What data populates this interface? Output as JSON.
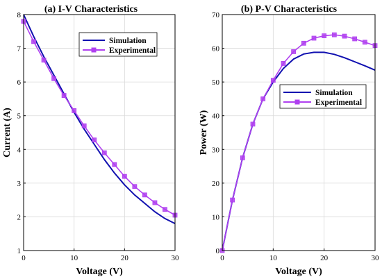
{
  "chart_data": [
    {
      "type": "line",
      "title": "(a) I-V Characteristics",
      "xlabel": "Voltage (V)",
      "ylabel": "Current (A)",
      "xlim": [
        0,
        30
      ],
      "ylim": [
        1,
        8
      ],
      "xticks": [
        0,
        10,
        20,
        30
      ],
      "yticks": [
        1,
        2,
        3,
        4,
        5,
        6,
        7,
        8
      ],
      "grid": true,
      "legend_position": "top-right",
      "series": [
        {
          "name": "Simulation",
          "color": "#1010b0",
          "marker": "none",
          "x": [
            0,
            2,
            4,
            6,
            8,
            10,
            12,
            14,
            16,
            18,
            20,
            22,
            24,
            26,
            28,
            30
          ],
          "y": [
            8.0,
            7.35,
            6.75,
            6.2,
            5.65,
            5.1,
            4.6,
            4.15,
            3.7,
            3.3,
            2.95,
            2.65,
            2.4,
            2.15,
            1.95,
            1.8
          ]
        },
        {
          "name": "Experimental",
          "color": "#b040f0",
          "marker": "square",
          "x": [
            0,
            2,
            4,
            6,
            8,
            10,
            12,
            14,
            16,
            18,
            20,
            22,
            24,
            26,
            28,
            30
          ],
          "y": [
            7.8,
            7.2,
            6.65,
            6.1,
            5.6,
            5.15,
            4.7,
            4.28,
            3.9,
            3.55,
            3.2,
            2.9,
            2.65,
            2.42,
            2.22,
            2.05
          ]
        }
      ]
    },
    {
      "type": "line",
      "title": "(b) P-V Characteristics",
      "xlabel": "Voltage (V)",
      "ylabel": "Power (W)",
      "xlim": [
        0,
        30
      ],
      "ylim": [
        0,
        70
      ],
      "xticks": [
        0,
        10,
        20,
        30
      ],
      "yticks": [
        0,
        10,
        20,
        30,
        40,
        50,
        60,
        70
      ],
      "grid": true,
      "legend_position": "center-right",
      "series": [
        {
          "name": "Simulation",
          "color": "#1010b0",
          "marker": "none",
          "x": [
            0,
            2,
            4,
            6,
            8,
            10,
            12,
            14,
            16,
            18,
            20,
            22,
            24,
            26,
            28,
            30
          ],
          "y": [
            0,
            15,
            27.5,
            37.5,
            45,
            50,
            54,
            56.8,
            58.3,
            58.8,
            58.8,
            58.2,
            57.2,
            56,
            54.8,
            53.5
          ]
        },
        {
          "name": "Experimental",
          "color": "#b040f0",
          "marker": "square",
          "x": [
            0,
            2,
            4,
            6,
            8,
            10,
            12,
            14,
            16,
            18,
            20,
            22,
            24,
            26,
            28,
            30
          ],
          "y": [
            0,
            15,
            27.5,
            37.5,
            45,
            50.5,
            55.5,
            59,
            61.5,
            63,
            63.7,
            64,
            63.6,
            62.8,
            61.8,
            60.8
          ]
        }
      ]
    }
  ]
}
